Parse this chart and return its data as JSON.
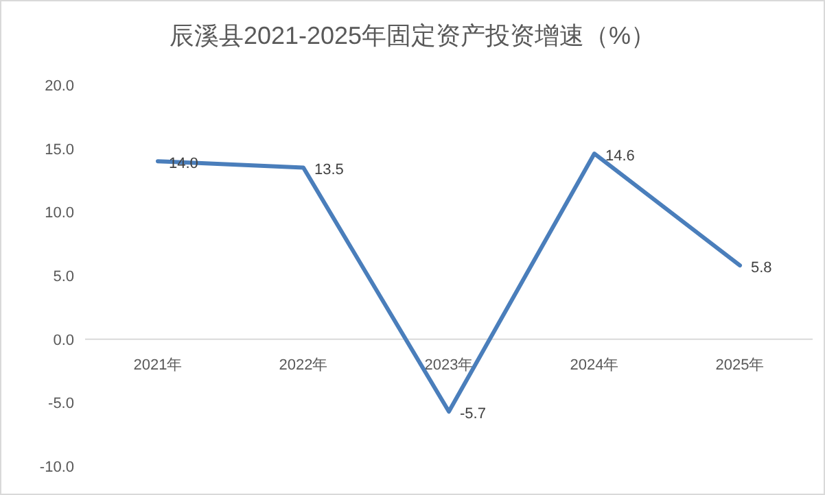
{
  "chart_data": {
    "type": "line",
    "title": "辰溪县2021-2025年固定资产投资增速（%）",
    "categories": [
      "2021年",
      "2022年",
      "2023年",
      "2024年",
      "2025年"
    ],
    "series": [
      {
        "color": "#4a7ebb",
        "values": [
          14.0,
          13.5,
          -5.7,
          14.6,
          5.8
        ],
        "value_labels": [
          "14.0",
          "13.5",
          "-5.7",
          "14.6",
          "5.8"
        ]
      }
    ],
    "ylim": [
      -10,
      20
    ],
    "yticks": [
      {
        "value": -10,
        "label": "-10.0"
      },
      {
        "value": -5,
        "label": "-5.0"
      },
      {
        "value": 0,
        "label": "0.0"
      },
      {
        "value": 5,
        "label": "5.0"
      },
      {
        "value": 10,
        "label": "10.0"
      },
      {
        "value": 15,
        "label": "15.0"
      },
      {
        "value": 20,
        "label": "20.0"
      }
    ],
    "grid": false,
    "marker": "none",
    "line_style": "solid"
  }
}
